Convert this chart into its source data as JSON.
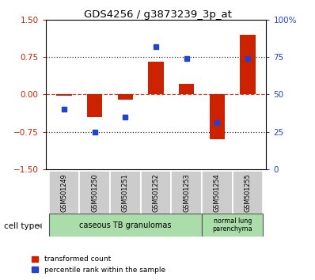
{
  "title": "GDS4256 / g3873239_3p_at",
  "samples": [
    "GSM501249",
    "GSM501250",
    "GSM501251",
    "GSM501252",
    "GSM501253",
    "GSM501254",
    "GSM501255"
  ],
  "red_values": [
    -0.02,
    -0.45,
    -0.1,
    0.65,
    0.22,
    -0.9,
    1.2
  ],
  "blue_percentiles": [
    40,
    25,
    35,
    82,
    74,
    31,
    74
  ],
  "ylim_left": [
    -1.5,
    1.5
  ],
  "ylim_right": [
    0,
    100
  ],
  "yticks_left": [
    -1.5,
    -0.75,
    0,
    0.75,
    1.5
  ],
  "yticks_right": [
    0,
    25,
    50,
    75,
    100
  ],
  "hlines": [
    0.75,
    -0.75
  ],
  "red_color": "#cc2200",
  "blue_color": "#2244cc",
  "dotted_color": "#333333",
  "group1_label": "caseous TB granulomas",
  "group2_label": "normal lung\nparenchyma",
  "group1_color": "#aaddaa",
  "group2_color": "#aaddaa",
  "cell_type_label": "cell type",
  "legend_red": "transformed count",
  "legend_blue": "percentile rank within the sample",
  "bar_width": 0.5
}
